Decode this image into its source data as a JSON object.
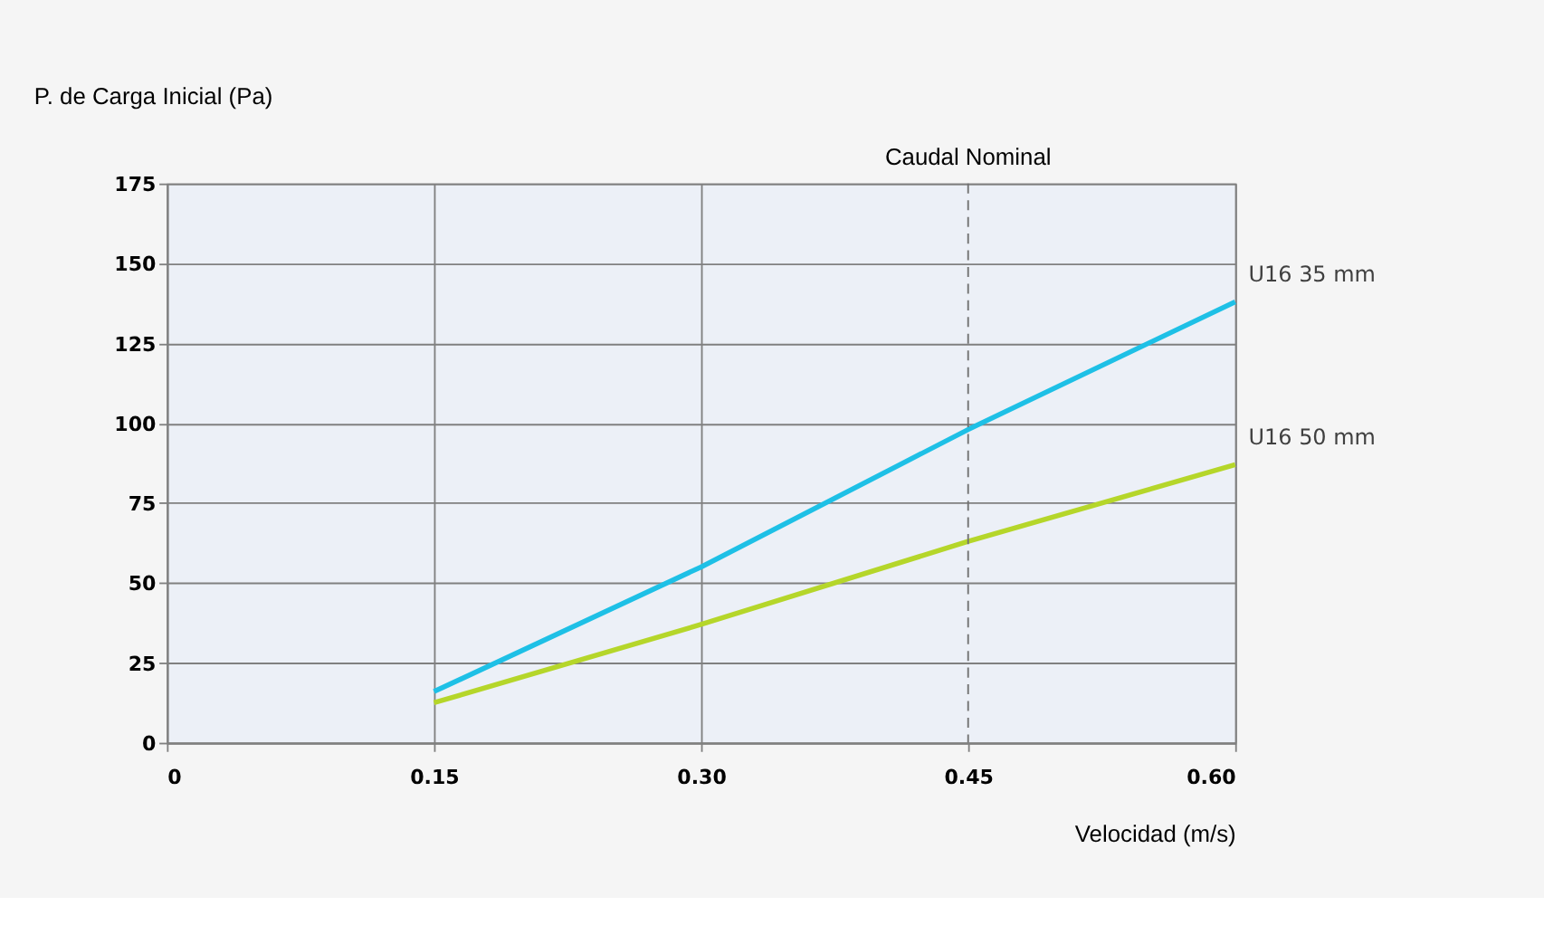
{
  "chart_data": {
    "type": "line",
    "ylabel": "P. de Carga Inicial (Pa)",
    "xlabel": "Velocidad (m/s)",
    "x": [
      0.15,
      0.3,
      0.45,
      0.6
    ],
    "series": [
      {
        "name": "U16 35 mm",
        "color": "#1ec0e6",
        "values": [
          16,
          55,
          98,
          138
        ]
      },
      {
        "name": "U16 50 mm",
        "color": "#b5d62a",
        "values": [
          12.5,
          37,
          63,
          87
        ]
      }
    ],
    "xlim": [
      0,
      0.6
    ],
    "xticks": [
      0,
      0.15,
      {
        "value": 0.3,
        "label": "0.30"
      },
      0.45,
      {
        "value": 0.6,
        "label": "0.60"
      }
    ],
    "ylim": [
      0,
      175
    ],
    "yticks": [
      0,
      25,
      50,
      75,
      100,
      125,
      150,
      175
    ],
    "grid": true,
    "marker": "none",
    "line_style": "solid",
    "ref_lines": [
      {
        "axis": "x",
        "value": 0.45,
        "label": "Caudal Nominal",
        "color": "#707070",
        "line_style": "dashed"
      }
    ]
  }
}
